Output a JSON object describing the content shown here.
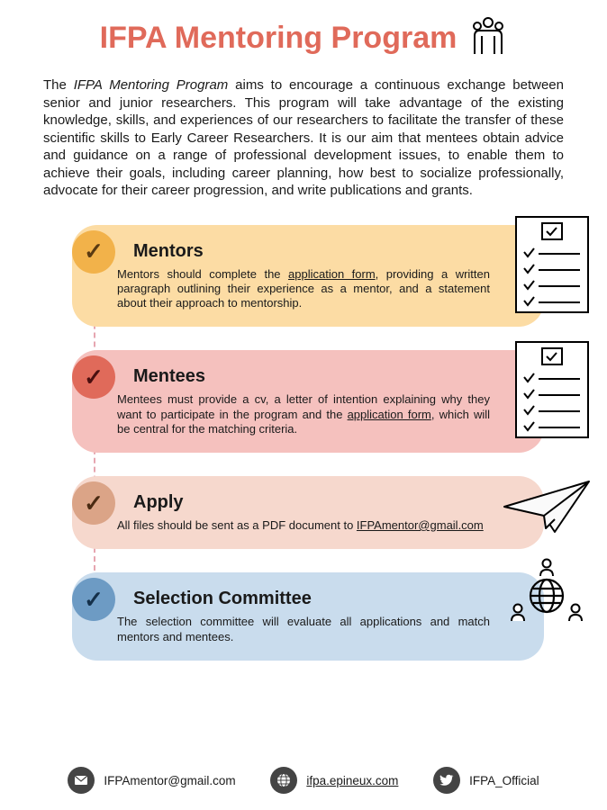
{
  "title": "IFPA Mentoring Program",
  "title_color": "#e06a5a",
  "intro": {
    "prefix": "The ",
    "program_name": "IFPA Mentoring Program",
    "body": " aims to encourage a continuous exchange between senior and junior researchers. This program will take advantage of the existing knowledge, skills, and experiences of our researchers to facilitate the transfer of these scientific skills to Early Career Researchers. It is our aim that mentees obtain advice and guidance on a range of professional development issues, to enable them to achieve their goals, including career planning, how best to socialize professionally, advocate for their career progression, and write publications and grants."
  },
  "steps": [
    {
      "title": "Mentors",
      "body_pre": "Mentors should complete the ",
      "link": "application form",
      "body_post": ", providing a written paragraph outlining their experience as a mentor, and a statement about their approach to mentorship.",
      "bg": "#fcdca4",
      "badge_bg": "#f2b24a",
      "badge_check_color": "#5a3a12",
      "icon": "checklist"
    },
    {
      "title": "Mentees",
      "body_pre": "Mentees must provide a cv, a letter of intention explaining why they want to participate in the program and the ",
      "link": "application form",
      "body_post": ", which will be central for the matching criteria.",
      "bg": "#f5c1be",
      "badge_bg": "#e06a5a",
      "badge_check_color": "#4a0f0f",
      "icon": "checklist"
    },
    {
      "title": "Apply",
      "body_pre": "All files should be sent as a PDF document to ",
      "link": "IFPAmentor@gmail.com",
      "body_post": "",
      "bg": "#f6d8cd",
      "badge_bg": "#dba487",
      "badge_check_color": "#4a2a12",
      "icon": "paperplane"
    },
    {
      "title": "Selection Committee",
      "body_pre": "The selection committee will evaluate all applications and match mentors and mentees.",
      "link": "",
      "body_post": "",
      "bg": "#c9dced",
      "badge_bg": "#6d9bc4",
      "badge_check_color": "#14304a",
      "icon": "people-globe"
    }
  ],
  "connector_color": "#e6a6b0",
  "footer": {
    "email": "IFPAmentor@gmail.com",
    "website": "ifpa.epineux.com",
    "twitter": "IFPA_Official"
  }
}
